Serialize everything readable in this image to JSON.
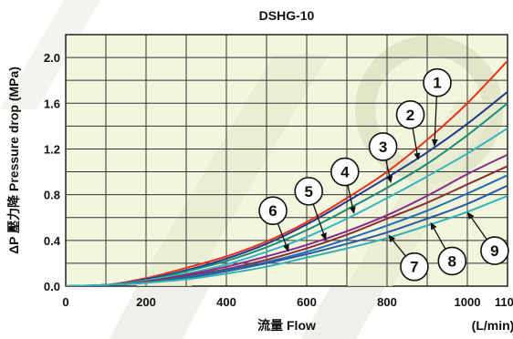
{
  "chart_data": {
    "type": "line",
    "title": "DSHG-10",
    "xlabel": "流量  Flow",
    "xunit": "(L/min)",
    "ylabel": "ΔP 壓力降  Pressure drop (MPa)",
    "xlim": [
      0,
      1100
    ],
    "ylim": [
      0,
      2.2
    ],
    "x_ticks": [
      0,
      200,
      400,
      600,
      800,
      1000,
      1100
    ],
    "x_tick_labels": [
      "0",
      "200",
      "400",
      "600",
      "800",
      "1000",
      "1100"
    ],
    "y_ticks": [
      0.0,
      0.4,
      0.8,
      1.2,
      1.6,
      2.0
    ],
    "y_tick_labels": [
      "0.0",
      "0.4",
      "0.8",
      "1.2",
      "1.6",
      "2.0"
    ],
    "grid": true,
    "x": [
      0,
      100,
      200,
      300,
      400,
      500,
      600,
      700,
      800,
      900,
      1000,
      1100
    ],
    "series": [
      {
        "name": "1",
        "color": "#e8321e",
        "values": [
          0,
          0.01,
          0.07,
          0.16,
          0.26,
          0.39,
          0.56,
          0.77,
          1.0,
          1.28,
          1.6,
          1.97
        ]
      },
      {
        "name": "2",
        "color": "#1e3c8c",
        "values": [
          0,
          0.01,
          0.06,
          0.14,
          0.24,
          0.37,
          0.54,
          0.74,
          0.95,
          1.17,
          1.42,
          1.7
        ]
      },
      {
        "name": "3",
        "color": "#1a8c7c",
        "values": [
          0,
          0.01,
          0.05,
          0.13,
          0.22,
          0.34,
          0.49,
          0.67,
          0.86,
          1.07,
          1.32,
          1.6
        ]
      },
      {
        "name": "4",
        "color": "#35b4c3",
        "values": [
          0,
          0.01,
          0.05,
          0.11,
          0.19,
          0.3,
          0.43,
          0.59,
          0.77,
          0.96,
          1.16,
          1.38
        ]
      },
      {
        "name": "5",
        "color": "#8a2a8a",
        "values": [
          0,
          0.01,
          0.04,
          0.1,
          0.17,
          0.26,
          0.36,
          0.48,
          0.62,
          0.79,
          0.98,
          1.15
        ]
      },
      {
        "name": "6",
        "color": "#8c2e3a",
        "values": [
          0,
          0.01,
          0.04,
          0.09,
          0.15,
          0.23,
          0.33,
          0.45,
          0.59,
          0.73,
          0.89,
          1.05
        ]
      },
      {
        "name": "7",
        "color": "#1f6fb2",
        "values": [
          0,
          0.01,
          0.03,
          0.08,
          0.14,
          0.21,
          0.3,
          0.41,
          0.53,
          0.66,
          0.81,
          0.97
        ]
      },
      {
        "name": "8",
        "color": "#2b58a8",
        "values": [
          0,
          0.01,
          0.03,
          0.07,
          0.13,
          0.2,
          0.28,
          0.37,
          0.47,
          0.59,
          0.72,
          0.88
        ]
      },
      {
        "name": "9",
        "color": "#2fb3b8",
        "values": [
          0,
          0.01,
          0.03,
          0.06,
          0.11,
          0.17,
          0.25,
          0.33,
          0.42,
          0.53,
          0.65,
          0.79
        ]
      }
    ],
    "annotations": [
      {
        "label": "1",
        "x": 925,
        "y": 1.78,
        "points_to": {
          "x": 918,
          "y": 1.22
        }
      },
      {
        "label": "2",
        "x": 858,
        "y": 1.5,
        "points_to": {
          "x": 878,
          "y": 1.1
        }
      },
      {
        "label": "3",
        "x": 790,
        "y": 1.22,
        "points_to": {
          "x": 810,
          "y": 0.9
        }
      },
      {
        "name_hidden": true,
        "label": "4",
        "x": 695,
        "y": 1.0,
        "points_to": {
          "x": 718,
          "y": 0.63
        }
      },
      {
        "label": "5",
        "x": 605,
        "y": 0.83,
        "points_to": {
          "x": 648,
          "y": 0.4
        }
      },
      {
        "label": "6",
        "x": 516,
        "y": 0.66,
        "points_to": {
          "x": 555,
          "y": 0.3
        }
      },
      {
        "label": "7",
        "x": 868,
        "y": 0.17,
        "points_to": {
          "x": 803,
          "y": 0.45
        }
      },
      {
        "label": "8",
        "x": 962,
        "y": 0.22,
        "points_to": {
          "x": 908,
          "y": 0.56
        }
      },
      {
        "label": "9",
        "x": 1068,
        "y": 0.31,
        "points_to": {
          "x": 1000,
          "y": 0.65
        }
      }
    ]
  }
}
